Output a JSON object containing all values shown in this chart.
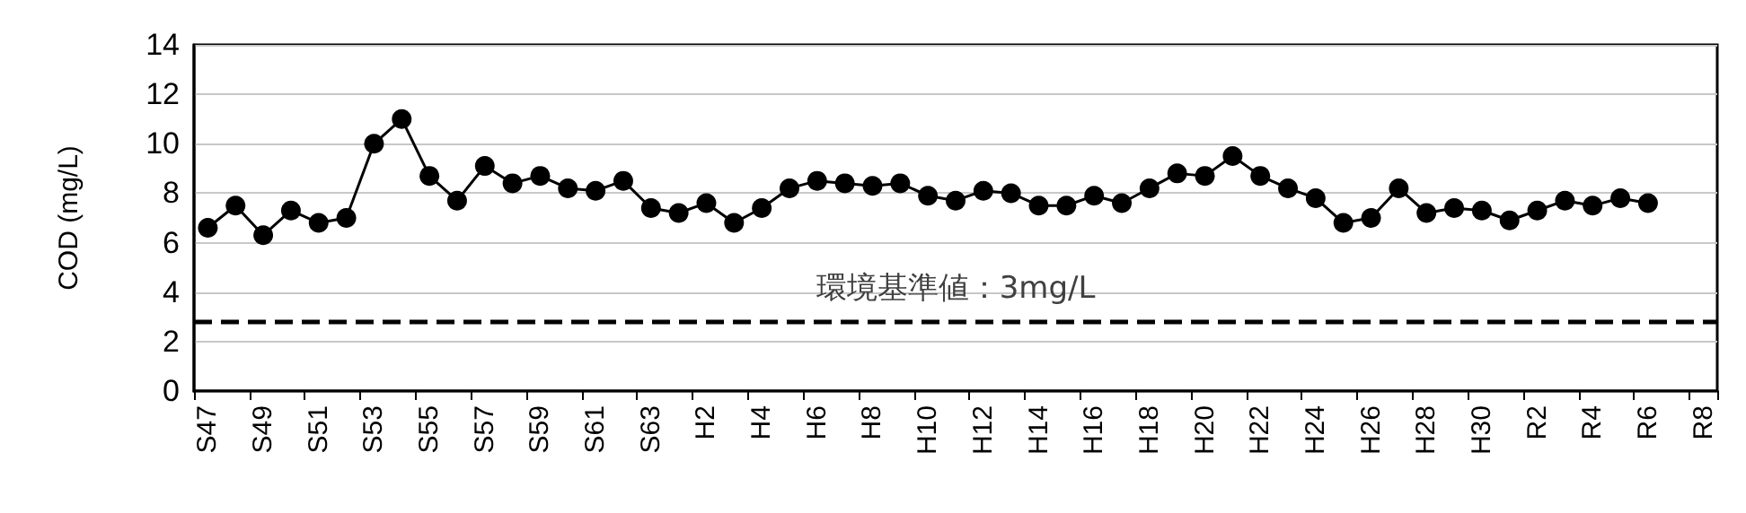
{
  "chart_data": {
    "type": "line",
    "ylabel": "COD (mg/L)",
    "categories": [
      "S47",
      null,
      "S49",
      null,
      "S51",
      null,
      "S53",
      null,
      "S55",
      null,
      "S57",
      null,
      "S59",
      null,
      "S61",
      null,
      "S63",
      null,
      "H2",
      null,
      "H4",
      null,
      "H6",
      null,
      "H8",
      null,
      "H10",
      null,
      "H12",
      null,
      "H14",
      null,
      "H16",
      null,
      "H18",
      null,
      "H20",
      null,
      "H22",
      null,
      "H24",
      null,
      "H26",
      null,
      "H28",
      null,
      "H30",
      null,
      "R2",
      null,
      "R4",
      null,
      "R6",
      null,
      "R8"
    ],
    "series": [
      {
        "color": "#000000",
        "values": [
          6.6,
          7.5,
          6.3,
          7.3,
          6.8,
          7.0,
          10.0,
          11.0,
          8.7,
          7.7,
          9.1,
          8.4,
          8.7,
          8.2,
          8.1,
          8.5,
          7.4,
          7.2,
          7.6,
          6.8,
          7.4,
          8.2,
          8.5,
          8.4,
          8.3,
          8.4,
          7.9,
          7.7,
          8.1,
          8.0,
          7.5,
          7.5,
          7.9,
          7.6,
          8.2,
          8.8,
          8.7,
          9.5,
          8.7,
          8.2,
          7.8,
          6.8,
          7.0,
          8.2,
          7.2,
          7.4,
          7.3,
          6.9,
          7.3,
          7.7,
          7.5,
          7.8,
          7.6,
          null,
          null
        ]
      }
    ],
    "ylim": [
      0,
      14
    ],
    "yticks": [
      0,
      2,
      4,
      6,
      8,
      10,
      12,
      14
    ],
    "grid": "y",
    "marker": "circle",
    "line_style": "solid",
    "ref_lines": [
      {
        "axis": "y",
        "value": 2.8,
        "label": "環境基準値：3mg/L",
        "color": "#000000",
        "line_style": "dashed"
      }
    ]
  }
}
